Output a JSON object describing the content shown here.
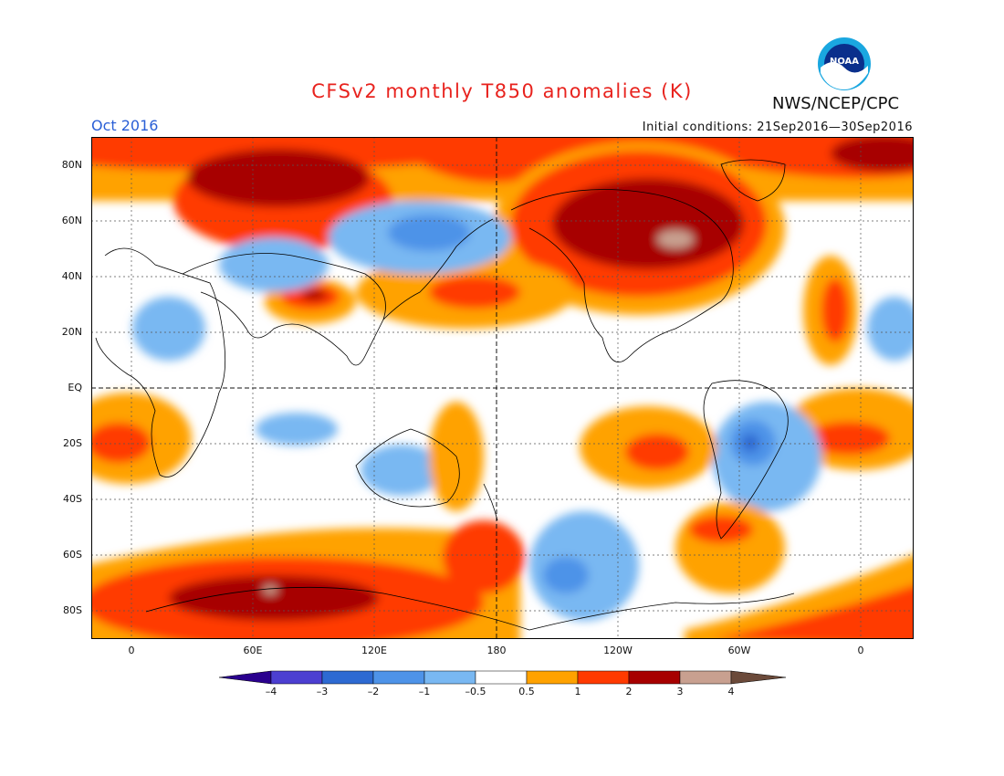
{
  "title": "CFSv2 monthly T850 anomalies (K)",
  "month": "Oct 2016",
  "initial_conditions": "Initial conditions: 21Sep2016—30Sep2016",
  "agency": "NWS/NCEP/CPC",
  "logo_text": "NOAA",
  "colors": {
    "title": "#e8231e",
    "month": "#2a5fd6",
    "pos_05_1": "#ffa200",
    "pos_1_2": "#ff3a00",
    "pos_2_3": "#a70000",
    "pos_3_4": "#c8a090",
    "neg_05_1": "#79b8f2",
    "neg_1_2": "#4e93e8",
    "neg_2_3": "#2d6ad2"
  },
  "lat_labels": [
    "80N",
    "60N",
    "40N",
    "20N",
    "EQ",
    "20S",
    "40S",
    "60S",
    "80S"
  ],
  "lon_labels": [
    "0",
    "60E",
    "120E",
    "180",
    "120W",
    "60W",
    "0"
  ],
  "colorbar": {
    "colors": [
      "#2a008e",
      "#4c3fd1",
      "#2d6ad2",
      "#4e93e8",
      "#79b8f2",
      "#ffffff",
      "#ffa200",
      "#ff3a00",
      "#a70000",
      "#c8a090",
      "#6b4a3a"
    ],
    "ticks": [
      "–4",
      "–3",
      "–2",
      "–1",
      "–0.5",
      "0.5",
      "1",
      "2",
      "3",
      "4"
    ]
  }
}
